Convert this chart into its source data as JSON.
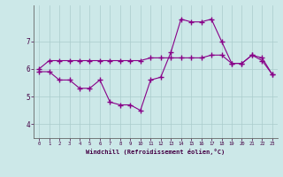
{
  "xlabel": "Windchill (Refroidissement éolien,°C)",
  "x_ticks": [
    0,
    1,
    2,
    3,
    4,
    5,
    6,
    7,
    8,
    9,
    10,
    11,
    12,
    13,
    14,
    15,
    16,
    17,
    18,
    19,
    20,
    21,
    22,
    23
  ],
  "line1_x": [
    0,
    1,
    2,
    3,
    4,
    5,
    6,
    7,
    8,
    9,
    10,
    11,
    12,
    13,
    14,
    15,
    16,
    17,
    18,
    19,
    20,
    21,
    22,
    23
  ],
  "line1_y": [
    5.9,
    5.9,
    5.6,
    5.6,
    5.3,
    5.3,
    5.6,
    4.8,
    4.7,
    4.7,
    4.5,
    5.6,
    5.7,
    6.6,
    7.8,
    7.7,
    7.7,
    7.8,
    7.0,
    6.2,
    6.2,
    6.5,
    6.3,
    5.8
  ],
  "line2_x": [
    0,
    1,
    2,
    3,
    4,
    5,
    6,
    7,
    8,
    9,
    10,
    11,
    12,
    13,
    14,
    15,
    16,
    17,
    18,
    19,
    20,
    21,
    22,
    23
  ],
  "line2_y": [
    6.0,
    6.3,
    6.3,
    6.3,
    6.3,
    6.3,
    6.3,
    6.3,
    6.3,
    6.3,
    6.3,
    6.4,
    6.4,
    6.4,
    6.4,
    6.4,
    6.4,
    6.5,
    6.5,
    6.2,
    6.2,
    6.5,
    6.4,
    5.8
  ],
  "line_color": "#880088",
  "bg_color": "#cce8e8",
  "grid_color": "#aacccc",
  "ylim": [
    3.5,
    8.3
  ],
  "yticks": [
    4,
    5,
    6,
    7
  ],
  "marker": "+",
  "markersize": 4,
  "linewidth": 0.8
}
